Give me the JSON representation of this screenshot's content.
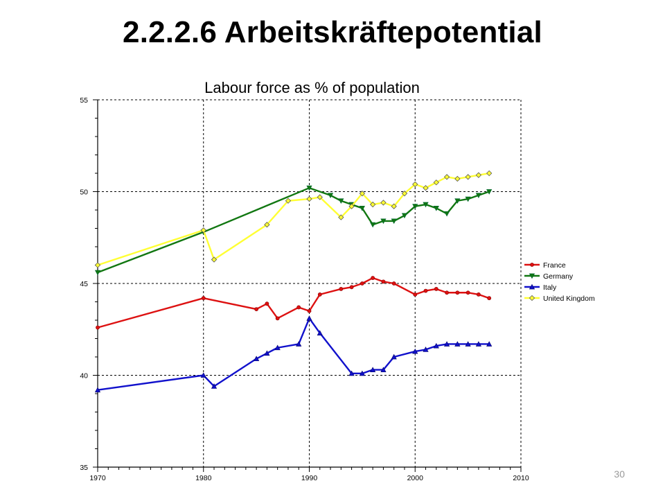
{
  "slide": {
    "title": "2.2.2.6 Arbeitskräftepotential",
    "page_number": "30"
  },
  "chart_data": {
    "type": "line",
    "title": "Labour force as % of population",
    "xlabel": "",
    "ylabel": "",
    "xlim": [
      1970,
      2010
    ],
    "ylim": [
      35,
      55
    ],
    "x_ticks": [
      1970,
      1980,
      1990,
      2000,
      2010
    ],
    "y_ticks": [
      35,
      40,
      45,
      50,
      55
    ],
    "grid": true,
    "legend_position": "right",
    "series": [
      {
        "name": "France",
        "color": "#dd1111",
        "marker": "circle",
        "x": [
          1970,
          1980,
          1985,
          1986,
          1987,
          1989,
          1990,
          1991,
          1993,
          1994,
          1995,
          1996,
          1997,
          1998,
          2000,
          2001,
          2002,
          2003,
          2004,
          2005,
          2006,
          2007
        ],
        "y": [
          42.6,
          44.2,
          43.6,
          43.9,
          43.1,
          43.7,
          43.5,
          44.4,
          44.7,
          44.8,
          45.0,
          45.3,
          45.1,
          45.0,
          44.4,
          44.6,
          44.7,
          44.5,
          44.5,
          44.5,
          44.4,
          44.2
        ]
      },
      {
        "name": "Germany",
        "color": "#117711",
        "marker": "triangle-down",
        "x": [
          1970,
          1980,
          1990,
          1992,
          1993,
          1994,
          1995,
          1996,
          1997,
          1998,
          1999,
          2000,
          2001,
          2002,
          2003,
          2004,
          2005,
          2006,
          2007
        ],
        "y": [
          45.6,
          47.8,
          50.2,
          49.8,
          49.5,
          49.3,
          49.1,
          48.2,
          48.4,
          48.4,
          48.7,
          49.2,
          49.3,
          49.1,
          48.8,
          49.5,
          49.6,
          49.8,
          50.0
        ]
      },
      {
        "name": "Italy",
        "color": "#1111cc",
        "marker": "triangle-up",
        "x": [
          1970,
          1980,
          1981,
          1985,
          1986,
          1987,
          1989,
          1990,
          1991,
          1994,
          1995,
          1996,
          1997,
          1998,
          2000,
          2001,
          2002,
          2003,
          2004,
          2005,
          2006,
          2007
        ],
        "y": [
          39.2,
          40.0,
          39.4,
          40.9,
          41.2,
          41.5,
          41.7,
          43.1,
          42.3,
          40.1,
          40.1,
          40.3,
          40.3,
          41.0,
          41.3,
          41.4,
          41.6,
          41.7,
          41.7,
          41.7,
          41.7,
          41.7
        ]
      },
      {
        "name": "United Kingdom",
        "color": "#ffff33",
        "marker": "diamond",
        "x": [
          1970,
          1980,
          1981,
          1986,
          1988,
          1990,
          1991,
          1993,
          1994,
          1995,
          1996,
          1997,
          1998,
          1999,
          2000,
          2001,
          2002,
          2003,
          2004,
          2005,
          2006,
          2007
        ],
        "y": [
          46.0,
          47.9,
          46.3,
          48.2,
          49.5,
          49.6,
          49.7,
          48.6,
          49.2,
          49.9,
          49.3,
          49.4,
          49.2,
          49.9,
          50.4,
          50.2,
          50.5,
          50.8,
          50.7,
          50.8,
          50.9,
          51.0
        ]
      }
    ]
  }
}
